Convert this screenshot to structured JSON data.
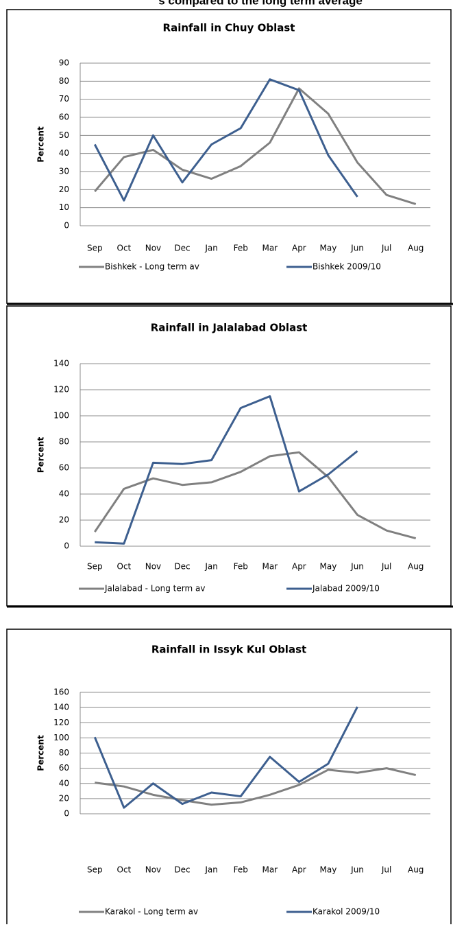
{
  "page_heading": "s compared to the long term average",
  "chart_data": [
    {
      "type": "line",
      "title": "Rainfall in Chuy Oblast",
      "y_label": "Percent",
      "categories": [
        "Sep",
        "Oct",
        "Nov",
        "Dec",
        "Jan",
        "Feb",
        "Mar",
        "Apr",
        "May",
        "Jun",
        "Jul",
        "Aug"
      ],
      "ylim": [
        0,
        90
      ],
      "yticks": [
        0,
        10,
        20,
        30,
        40,
        50,
        60,
        70,
        80,
        90
      ],
      "grid": true,
      "series": [
        {
          "name": "Bishkek - Long term av",
          "color": "#808080",
          "values": [
            19,
            38,
            42,
            31,
            26,
            33,
            46,
            76,
            62,
            35,
            17,
            12
          ]
        },
        {
          "name": "Bishkek 2009/10",
          "color": "#3d5f8f",
          "values": [
            45,
            14,
            50,
            24,
            45,
            54,
            81,
            75,
            39,
            16,
            null,
            null
          ]
        }
      ]
    },
    {
      "type": "line",
      "title": "Rainfall in Jalalabad Oblast",
      "y_label": "Percent",
      "categories": [
        "Sep",
        "Oct",
        "Nov",
        "Dec",
        "Jan",
        "Feb",
        "Mar",
        "Apr",
        "May",
        "Jun",
        "Jul",
        "Aug"
      ],
      "ylim": [
        0,
        140
      ],
      "yticks": [
        0,
        20,
        40,
        60,
        80,
        100,
        120,
        140
      ],
      "grid": true,
      "series": [
        {
          "name": "Jalalabad - Long term av",
          "color": "#808080",
          "values": [
            11,
            44,
            52,
            47,
            49,
            57,
            69,
            72,
            53,
            24,
            12,
            6
          ]
        },
        {
          "name": "Jalabad 2009/10",
          "color": "#3d5f8f",
          "values": [
            3,
            2,
            64,
            63,
            66,
            106,
            115,
            42,
            55,
            73,
            null,
            null
          ]
        }
      ]
    },
    {
      "type": "line",
      "title": "Rainfall in Issyk Kul Oblast",
      "y_label": "Percent",
      "categories": [
        "Sep",
        "Oct",
        "Nov",
        "Dec",
        "Jan",
        "Feb",
        "Mar",
        "Apr",
        "May",
        "Jun",
        "Jul",
        "Aug"
      ],
      "ylim": [
        0,
        160
      ],
      "yticks": [
        0,
        20,
        40,
        60,
        80,
        100,
        120,
        140,
        160
      ],
      "grid": true,
      "series": [
        {
          "name": "Karakol - Long term av",
          "color": "#808080",
          "values": [
            41,
            36,
            25,
            18,
            12,
            15,
            25,
            38,
            58,
            54,
            60,
            51
          ]
        },
        {
          "name": "Karakol 2009/10",
          "color": "#3d5f8f",
          "values": [
            101,
            8,
            40,
            13,
            28,
            23,
            75,
            42,
            66,
            141,
            null,
            null
          ]
        }
      ]
    }
  ]
}
